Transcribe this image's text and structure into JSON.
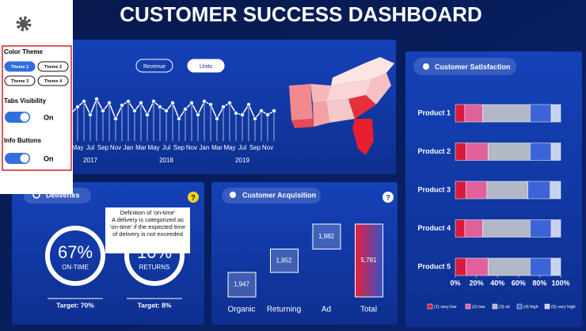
{
  "header": {
    "title": "CUSTOMER SUCCESS DASHBOARD"
  },
  "settings": {
    "color_theme": {
      "label": "Color Theme",
      "options": [
        "Theme 1",
        "Theme 2",
        "Theme 3",
        "Theme 4"
      ],
      "selected": 0
    },
    "tabs_visibility": {
      "label": "Tabs Visibility",
      "state": "On"
    },
    "info_buttons": {
      "label": "Info Buttons",
      "state": "On"
    }
  },
  "trend": {
    "buttons": [
      "Revenue",
      "Units"
    ],
    "selected": 1,
    "years": [
      "2017",
      "2018",
      "2019"
    ]
  },
  "deliveries": {
    "title": "Deliveries",
    "kpis": [
      {
        "value": "67%",
        "label": "ON-TIME",
        "target": "Target: 70%"
      },
      {
        "value": "10%",
        "label": "RETURNS",
        "target": "Target: 8%"
      }
    ],
    "tooltip": {
      "title": "Definition of 'on-time'",
      "text": "A delivery is categorized as 'on-time' if the expected time of delivery is not exceeded"
    }
  },
  "chart_data": [
    {
      "type": "line",
      "color": "#ffffff",
      "categories": [
        null,
        "May",
        null,
        "Jul",
        null,
        "Sep",
        null,
        "Nov",
        null,
        "Jan",
        null,
        "Mar",
        null,
        "May",
        null,
        "Jul",
        null,
        "Sep",
        null,
        "Nov",
        null,
        "Jan",
        null,
        "Mar",
        null,
        "May",
        null,
        "Jul",
        null,
        "Sep",
        null,
        "Nov",
        null
      ],
      "values": [
        57,
        65,
        72,
        55,
        75,
        60,
        70,
        50,
        67,
        72,
        60,
        70,
        55,
        72,
        65,
        60,
        70,
        50,
        62,
        70,
        55,
        72,
        68,
        50,
        65,
        70,
        57,
        55,
        68,
        50,
        60,
        55,
        60
      ]
    },
    {
      "type": "waterfall",
      "title": "Customer Acquisition",
      "categories": [
        "Organic",
        "Returning",
        "Ad",
        "Total"
      ],
      "values": [
        1947,
        1852,
        1982,
        5781
      ],
      "value_labels": [
        "1,947",
        "1,852",
        "1,982",
        "5,781"
      ]
    },
    {
      "type": "stacked_bar",
      "title": "Customer Satisfaction",
      "orientation": "horizontal",
      "categories": [
        "Product 1",
        "Product 2",
        "Product 3",
        "Product 4",
        "Product 5"
      ],
      "series": [
        {
          "name": "(1) very low",
          "color": "#d81b3c",
          "values": [
            9,
            10,
            10,
            9,
            10
          ]
        },
        {
          "name": "(2) low",
          "color": "#e0609a",
          "values": [
            17,
            21,
            20,
            17,
            21
          ]
        },
        {
          "name": "(3) ok",
          "color": "#b3b8c6",
          "values": [
            45,
            40,
            39,
            45,
            40
          ]
        },
        {
          "name": "(4) high",
          "color": "#3c64d8",
          "values": [
            20,
            20,
            21,
            20,
            20
          ]
        },
        {
          "name": "(5) very high",
          "color": "#c8d2ef",
          "values": [
            9,
            9,
            10,
            9,
            9
          ]
        }
      ],
      "xlim": [
        0,
        100
      ],
      "xticks": [
        {
          "value": 0,
          "label": "0%"
        },
        {
          "value": 20,
          "label": "20%"
        },
        {
          "value": 40,
          "label": "40%"
        },
        {
          "value": 60,
          "label": "60%"
        },
        {
          "value": 80,
          "label": "80%"
        },
        {
          "value": 100,
          "label": "100%"
        }
      ]
    }
  ]
}
